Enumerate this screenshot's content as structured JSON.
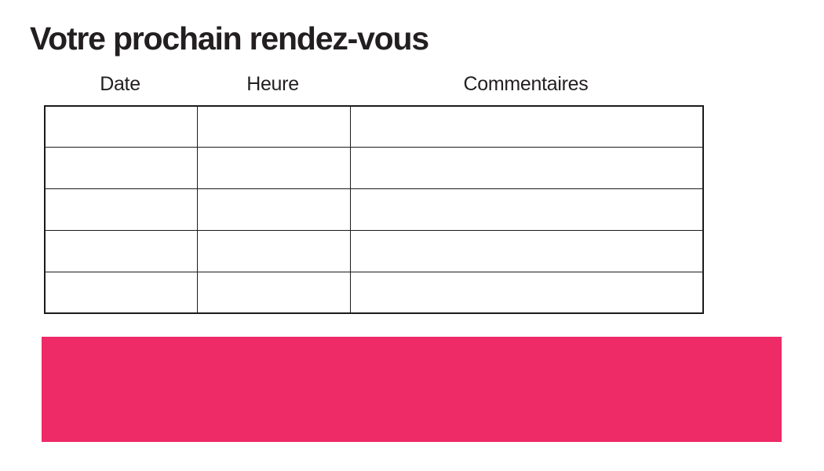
{
  "page": {
    "title": "Votre prochain rendez-vous"
  },
  "table": {
    "columns": [
      "Date",
      "Heure",
      "Commentaires"
    ],
    "rows": [
      [
        "",
        "",
        ""
      ],
      [
        "",
        "",
        ""
      ],
      [
        "",
        "",
        ""
      ],
      [
        "",
        "",
        ""
      ],
      [
        "",
        "",
        ""
      ]
    ]
  },
  "banner": {
    "color": "#EE2A67"
  },
  "colors": {
    "text": "#231F20",
    "table_border": "#1B1B1B",
    "background": "#FFFFFF"
  }
}
